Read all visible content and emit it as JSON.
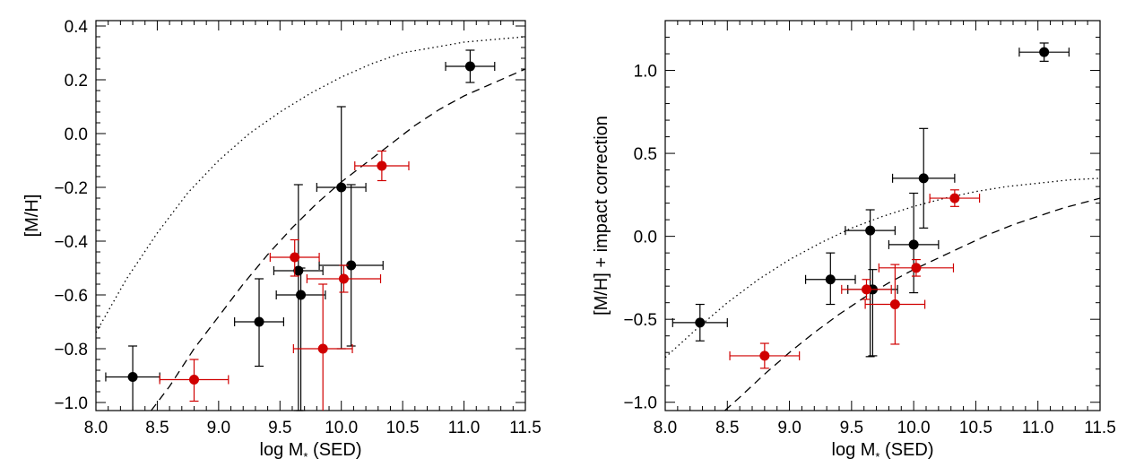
{
  "chart_data": [
    {
      "type": "scatter",
      "panel": "left",
      "xlabel": "log M* (SED)",
      "xlabel_parts": {
        "pre": "log M",
        "sub": "*",
        "post": " (SED)"
      },
      "ylabel": "[M/H]",
      "xlim": [
        8.0,
        11.5
      ],
      "ylim": [
        -1.03,
        0.42
      ],
      "xticks": [
        8.0,
        8.5,
        9.0,
        9.5,
        10.0,
        10.5,
        11.0,
        11.5
      ],
      "xtick_labels": [
        "8.0",
        "8.5",
        "9.0",
        "9.5",
        "10.0",
        "10.5",
        "11.0",
        "11.5"
      ],
      "yticks": [
        -1.0,
        -0.8,
        -0.6,
        -0.4,
        -0.2,
        0.0,
        0.2,
        0.4
      ],
      "ytick_labels": [
        "−1.0",
        "−0.8",
        "−0.6",
        "−0.4",
        "−0.2",
        "0.0",
        "0.2",
        "0.4"
      ],
      "colors": {
        "black": "#000000",
        "red": "#d00000"
      },
      "series": [
        {
          "name": "black",
          "color": "#000000",
          "points": [
            {
              "x": 8.3,
              "y": -0.905,
              "xerr": 0.22,
              "yerr_lo": 0.13,
              "yerr_hi": 0.115
            },
            {
              "x": 9.33,
              "y": -0.7,
              "xerr": 0.2,
              "yerr_lo": 0.165,
              "yerr_hi": 0.16
            },
            {
              "x": 9.65,
              "y": -0.51,
              "xerr": 0.2,
              "yerr_lo": 0.52,
              "yerr_hi": 0.32
            },
            {
              "x": 9.67,
              "y": -0.6,
              "xerr": 0.2,
              "yerr_lo": 0.43,
              "yerr_hi": 0.1
            },
            {
              "x": 10.0,
              "y": -0.2,
              "xerr": 0.2,
              "yerr_lo": 0.6,
              "yerr_hi": 0.3
            },
            {
              "x": 10.08,
              "y": -0.49,
              "xerr": 0.26,
              "yerr_lo": 0.3,
              "yerr_hi": 0.3
            },
            {
              "x": 11.05,
              "y": 0.25,
              "xerr": 0.2,
              "yerr_lo": 0.06,
              "yerr_hi": 0.06
            }
          ]
        },
        {
          "name": "red",
          "color": "#d00000",
          "points": [
            {
              "x": 8.8,
              "y": -0.915,
              "xerr": 0.28,
              "yerr_lo": 0.08,
              "yerr_hi": 0.075
            },
            {
              "x": 9.62,
              "y": -0.46,
              "xerr": 0.2,
              "yerr_lo": 0.07,
              "yerr_hi": 0.065
            },
            {
              "x": 9.85,
              "y": -0.8,
              "xerr": 0.24,
              "yerr_lo": 0.3,
              "yerr_hi": 0.24
            },
            {
              "x": 10.02,
              "y": -0.54,
              "xerr": 0.3,
              "yerr_lo": 0.05,
              "yerr_hi": 0.05
            },
            {
              "x": 10.33,
              "y": -0.12,
              "xerr": 0.22,
              "yerr_lo": 0.055,
              "yerr_hi": 0.055
            }
          ]
        }
      ],
      "curves": [
        {
          "name": "dotted",
          "style": "dotted",
          "x": [
            8.0,
            8.25,
            8.5,
            8.75,
            9.0,
            9.25,
            9.5,
            9.75,
            10.0,
            10.25,
            10.5,
            10.75,
            11.0,
            11.25,
            11.5
          ],
          "y": [
            -0.74,
            -0.54,
            -0.37,
            -0.22,
            -0.1,
            0.0,
            0.08,
            0.15,
            0.21,
            0.26,
            0.3,
            0.32,
            0.34,
            0.35,
            0.36
          ]
        },
        {
          "name": "dashed",
          "style": "dashed",
          "x": [
            8.45,
            8.6,
            8.8,
            9.0,
            9.2,
            9.4,
            9.6,
            9.8,
            10.0,
            10.2,
            10.4,
            10.6,
            10.8,
            11.0,
            11.2,
            11.5
          ],
          "y": [
            -1.03,
            -0.94,
            -0.8,
            -0.68,
            -0.56,
            -0.45,
            -0.35,
            -0.26,
            -0.18,
            -0.11,
            -0.04,
            0.03,
            0.09,
            0.14,
            0.18,
            0.24
          ]
        }
      ]
    },
    {
      "type": "scatter",
      "panel": "right",
      "xlabel": "log M* (SED)",
      "xlabel_parts": {
        "pre": "log M",
        "sub": "*",
        "post": " (SED)"
      },
      "ylabel": "[M/H] + impact correction",
      "xlim": [
        8.0,
        11.5
      ],
      "ylim": [
        -1.05,
        1.3
      ],
      "xticks": [
        8.0,
        8.5,
        9.0,
        9.5,
        10.0,
        10.5,
        11.0,
        11.5
      ],
      "xtick_labels": [
        "8.0",
        "8.5",
        "9.0",
        "9.5",
        "10.0",
        "10.5",
        "11.0",
        "11.5"
      ],
      "yticks": [
        -1.0,
        -0.5,
        0.0,
        0.5,
        1.0
      ],
      "ytick_labels": [
        "−1.0",
        "−0.5",
        "0.0",
        "0.5",
        "1.0"
      ],
      "colors": {
        "black": "#000000",
        "red": "#d00000"
      },
      "series": [
        {
          "name": "black",
          "color": "#000000",
          "points": [
            {
              "x": 8.28,
              "y": -0.52,
              "xerr": 0.22,
              "yerr_lo": 0.11,
              "yerr_hi": 0.11
            },
            {
              "x": 9.33,
              "y": -0.26,
              "xerr": 0.2,
              "yerr_lo": 0.15,
              "yerr_hi": 0.16
            },
            {
              "x": 9.65,
              "y": 0.035,
              "xerr": 0.2,
              "yerr_lo": 0.76,
              "yerr_hi": 0.125
            },
            {
              "x": 9.67,
              "y": -0.32,
              "xerr": 0.2,
              "yerr_lo": 0.4,
              "yerr_hi": 0.12
            },
            {
              "x": 10.0,
              "y": -0.05,
              "xerr": 0.2,
              "yerr_lo": 0.29,
              "yerr_hi": 0.31
            },
            {
              "x": 10.08,
              "y": 0.35,
              "xerr": 0.25,
              "yerr_lo": 0.3,
              "yerr_hi": 0.3
            },
            {
              "x": 11.05,
              "y": 1.11,
              "xerr": 0.2,
              "yerr_lo": 0.055,
              "yerr_hi": 0.055
            }
          ]
        },
        {
          "name": "red",
          "color": "#d00000",
          "points": [
            {
              "x": 8.8,
              "y": -0.72,
              "xerr": 0.28,
              "yerr_lo": 0.075,
              "yerr_hi": 0.075
            },
            {
              "x": 9.62,
              "y": -0.32,
              "xerr": 0.2,
              "yerr_lo": 0.06,
              "yerr_hi": 0.06
            },
            {
              "x": 9.85,
              "y": -0.41,
              "xerr": 0.24,
              "yerr_lo": 0.24,
              "yerr_hi": 0.24
            },
            {
              "x": 10.02,
              "y": -0.19,
              "xerr": 0.3,
              "yerr_lo": 0.05,
              "yerr_hi": 0.05
            },
            {
              "x": 10.33,
              "y": 0.23,
              "xerr": 0.2,
              "yerr_lo": 0.05,
              "yerr_hi": 0.05
            }
          ]
        }
      ],
      "curves": [
        {
          "name": "dotted",
          "style": "dotted",
          "x": [
            8.0,
            8.25,
            8.5,
            8.75,
            9.0,
            9.25,
            9.5,
            9.75,
            10.0,
            10.25,
            10.5,
            10.75,
            11.0,
            11.25,
            11.5
          ],
          "y": [
            -0.73,
            -0.56,
            -0.4,
            -0.26,
            -0.14,
            -0.04,
            0.05,
            0.12,
            0.18,
            0.23,
            0.27,
            0.3,
            0.32,
            0.34,
            0.35
          ]
        },
        {
          "name": "dashed",
          "style": "dashed",
          "x": [
            8.48,
            8.6,
            8.8,
            9.0,
            9.2,
            9.4,
            9.6,
            9.8,
            10.0,
            10.2,
            10.4,
            10.6,
            10.8,
            11.0,
            11.2,
            11.5
          ],
          "y": [
            -1.05,
            -0.97,
            -0.83,
            -0.7,
            -0.58,
            -0.47,
            -0.37,
            -0.28,
            -0.2,
            -0.13,
            -0.06,
            0.01,
            0.07,
            0.12,
            0.17,
            0.23
          ]
        }
      ]
    }
  ]
}
